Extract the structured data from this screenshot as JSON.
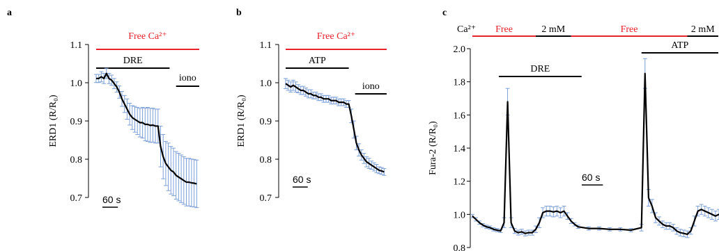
{
  "panels": [
    {
      "letter": "a",
      "chart_data": {
        "type": "line",
        "ylabel": "ERD1 (R/R₀)",
        "ylim": [
          0.7,
          1.15
        ],
        "yticks": [
          "0.7",
          "0.8",
          "0.9",
          "1.0",
          "1.1"
        ],
        "x_units": "s",
        "xlim": [
          0,
          400
        ],
        "time_scale_bar": {
          "label": "60 s",
          "duration": 60
        },
        "condition_bars": [
          {
            "label": "Free Ca²⁺",
            "color": "#e8212b",
            "start": 0,
            "end": 400
          },
          {
            "label": "DRE",
            "color": "#000000",
            "start": 0,
            "end": 285
          },
          {
            "label": "iono",
            "color": "#000000",
            "start": 310,
            "end": 400
          }
        ],
        "series": [
          {
            "color": "#000000",
            "error_color": "#7b9fd8",
            "x": [
              0,
              10,
              20,
              30,
              40,
              50,
              60,
              70,
              80,
              90,
              100,
              110,
              120,
              130,
              140,
              150,
              160,
              170,
              180,
              190,
              200,
              210,
              220,
              230,
              240,
              250,
              260,
              270,
              280,
              290,
              300,
              310,
              320,
              330,
              340,
              350,
              360,
              370,
              380,
              390
            ],
            "y": [
              1.05,
              1.05,
              1.055,
              1.05,
              1.065,
              1.05,
              1.045,
              1.035,
              1.025,
              1.01,
              0.99,
              0.975,
              0.96,
              0.945,
              0.935,
              0.93,
              0.925,
              0.92,
              0.92,
              0.915,
              0.915,
              0.912,
              0.913,
              0.91,
              0.91,
              0.85,
              0.82,
              0.8,
              0.79,
              0.78,
              0.775,
              0.765,
              0.76,
              0.755,
              0.75,
              0.745,
              0.745,
              0.743,
              0.742,
              0.74
            ],
            "error": [
              0.012,
              0.012,
              0.015,
              0.015,
              0.015,
              0.015,
              0.015,
              0.015,
              0.015,
              0.018,
              0.022,
              0.025,
              0.03,
              0.032,
              0.035,
              0.038,
              0.04,
              0.042,
              0.045,
              0.048,
              0.05,
              0.05,
              0.05,
              0.05,
              0.05,
              0.06,
              0.065,
              0.065,
              0.07,
              0.07,
              0.07,
              0.07,
              0.07,
              0.07,
              0.07,
              0.07,
              0.07,
              0.07,
              0.07,
              0.07
            ]
          }
        ]
      }
    },
    {
      "letter": "b",
      "chart_data": {
        "type": "line",
        "ylabel": "ERD1 (R/R₀)",
        "ylim": [
          0.7,
          1.15
        ],
        "yticks": [
          "0.7",
          "0.8",
          "0.9",
          "1.0",
          "1.1"
        ],
        "x_units": "s",
        "xlim": [
          0,
          400
        ],
        "time_scale_bar": {
          "label": "60 s",
          "duration": 60
        },
        "condition_bars": [
          {
            "label": "Free Ca²⁺",
            "color": "#e8212b",
            "start": 0,
            "end": 400
          },
          {
            "label": "ATP",
            "color": "#000000",
            "start": 0,
            "end": 250
          },
          {
            "label": "iono",
            "color": "#000000",
            "start": 275,
            "end": 400
          }
        ],
        "series": [
          {
            "color": "#000000",
            "error_color": "#7b9fd8",
            "x": [
              0,
              10,
              20,
              30,
              40,
              50,
              60,
              70,
              80,
              90,
              100,
              110,
              120,
              130,
              140,
              150,
              160,
              170,
              180,
              190,
              200,
              210,
              220,
              230,
              240,
              250,
              260,
              270,
              280,
              290,
              300,
              310,
              320,
              330,
              340,
              350,
              360,
              370,
              380,
              390
            ],
            "y": [
              1.035,
              1.03,
              1.025,
              1.03,
              1.025,
              1.02,
              1.015,
              1.015,
              1.01,
              1.005,
              1.005,
              1.0,
              1.0,
              0.995,
              0.995,
              0.99,
              0.99,
              0.99,
              0.985,
              0.985,
              0.985,
              0.98,
              0.98,
              0.98,
              0.975,
              0.975,
              0.94,
              0.9,
              0.86,
              0.84,
              0.825,
              0.815,
              0.805,
              0.8,
              0.795,
              0.79,
              0.785,
              0.78,
              0.778,
              0.775
            ],
            "error": [
              0.015,
              0.015,
              0.015,
              0.015,
              0.015,
              0.012,
              0.012,
              0.012,
              0.012,
              0.012,
              0.012,
              0.01,
              0.01,
              0.01,
              0.01,
              0.01,
              0.01,
              0.01,
              0.01,
              0.01,
              0.01,
              0.01,
              0.01,
              0.01,
              0.01,
              0.01,
              0.02,
              0.025,
              0.02,
              0.018,
              0.015,
              0.015,
              0.015,
              0.015,
              0.012,
              0.012,
              0.012,
              0.01,
              0.01,
              0.01
            ]
          }
        ]
      }
    },
    {
      "letter": "c",
      "chart_data": {
        "type": "line",
        "ylabel": "Fura-2 (R/R₀)",
        "ylim": [
          0.8,
          2.0
        ],
        "yticks": [
          "0.8",
          "1.0",
          "1.2",
          "1.4",
          "1.6",
          "1.8",
          "2.0"
        ],
        "x_units": "s",
        "xlim": [
          0,
          700
        ],
        "time_scale_bar": {
          "label": "60 s",
          "duration": 60
        },
        "ca_label": "Ca²⁺",
        "condition_bars": [
          {
            "label": "Free",
            "color": "#e8212b",
            "start": 0,
            "end": 180
          },
          {
            "label": "2 mM",
            "color": "#000000",
            "start": 180,
            "end": 280
          },
          {
            "label": "Free",
            "color": "#e8212b",
            "start": 280,
            "end": 610
          },
          {
            "label": "2 mM",
            "color": "#000000",
            "start": 610,
            "end": 700
          },
          {
            "label": "DRE",
            "color": "#000000",
            "start": 75,
            "end": 310
          },
          {
            "label": "ATP",
            "color": "#000000",
            "start": 480,
            "end": 700
          }
        ],
        "series": [
          {
            "color": "#000000",
            "error_color": "#7b9fd8",
            "x": [
              0,
              10,
              20,
              30,
              40,
              50,
              60,
              70,
              80,
              90,
              100,
              110,
              120,
              130,
              140,
              150,
              160,
              170,
              180,
              190,
              200,
              210,
              220,
              230,
              240,
              250,
              260,
              270,
              280,
              290,
              300,
              330,
              360,
              390,
              420,
              450,
              480,
              490,
              500,
              510,
              520,
              530,
              540,
              550,
              560,
              570,
              580,
              590,
              600,
              610,
              620,
              630,
              640,
              650,
              660,
              670,
              680,
              690,
              700
            ],
            "y": [
              0.99,
              0.97,
              0.95,
              0.935,
              0.925,
              0.92,
              0.91,
              0.905,
              0.9,
              0.95,
              1.68,
              0.95,
              0.9,
              0.89,
              0.895,
              0.885,
              0.89,
              0.89,
              0.91,
              0.95,
              1.01,
              1.02,
              1.02,
              1.015,
              1.02,
              1.01,
              1.02,
              0.99,
              0.96,
              0.94,
              0.925,
              0.915,
              0.915,
              0.91,
              0.91,
              0.905,
              0.92,
              1.85,
              1.1,
              1.05,
              0.98,
              0.96,
              0.94,
              0.93,
              0.93,
              0.92,
              0.9,
              0.89,
              0.885,
              0.88,
              0.9,
              0.96,
              1.02,
              1.03,
              1.02,
              1.01,
              1.0,
              0.99,
              1.0
            ],
            "error": [
              0.01,
              0.01,
              0.01,
              0.01,
              0.01,
              0.01,
              0.01,
              0.01,
              0.01,
              0.03,
              0.08,
              0.03,
              0.015,
              0.015,
              0.015,
              0.015,
              0.015,
              0.015,
              0.02,
              0.03,
              0.03,
              0.03,
              0.03,
              0.03,
              0.03,
              0.03,
              0.03,
              0.02,
              0.015,
              0.01,
              0.01,
              0.01,
              0.01,
              0.01,
              0.01,
              0.01,
              0.02,
              0.09,
              0.05,
              0.04,
              0.03,
              0.025,
              0.02,
              0.02,
              0.02,
              0.02,
              0.02,
              0.02,
              0.02,
              0.02,
              0.02,
              0.03,
              0.03,
              0.03,
              0.03,
              0.03,
              0.03,
              0.03,
              0.03
            ]
          }
        ]
      }
    }
  ]
}
